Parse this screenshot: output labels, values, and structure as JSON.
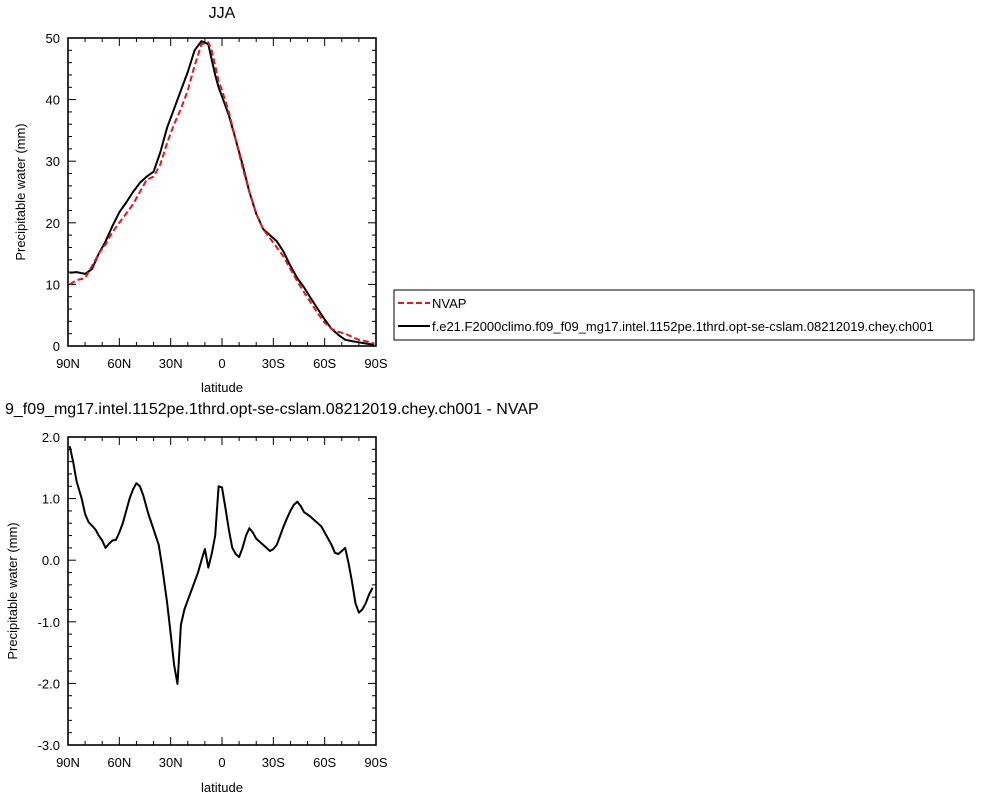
{
  "chart_data": [
    {
      "type": "line",
      "title": "JJA",
      "xlabel": "latitude",
      "ylabel": "Precipitable water (mm)",
      "xlim": [
        90,
        -90
      ],
      "ylim": [
        0,
        50
      ],
      "xticks": [
        {
          "value": 90,
          "label": "90N"
        },
        {
          "value": 60,
          "label": "60N"
        },
        {
          "value": 30,
          "label": "30N"
        },
        {
          "value": 0,
          "label": "0"
        },
        {
          "value": -30,
          "label": "30S"
        },
        {
          "value": -60,
          "label": "60S"
        },
        {
          "value": -90,
          "label": "90S"
        }
      ],
      "yticks": [
        {
          "value": 0,
          "label": "0"
        },
        {
          "value": 10,
          "label": "10"
        },
        {
          "value": 20,
          "label": "20"
        },
        {
          "value": 30,
          "label": "30"
        },
        {
          "value": 40,
          "label": "40"
        },
        {
          "value": 50,
          "label": "50"
        }
      ],
      "legend_position": "right",
      "series": [
        {
          "name": "NVAP",
          "color": "#e0191c",
          "dash": "dashed",
          "x": [
            89,
            85,
            80,
            76,
            72,
            68,
            64,
            60,
            56,
            52,
            48,
            44,
            40,
            36,
            32,
            28,
            24,
            20,
            16,
            12,
            8,
            6,
            4,
            2,
            0,
            -4,
            -8,
            -12,
            -16,
            -20,
            -24,
            -28,
            -32,
            -36,
            -40,
            -44,
            -48,
            -52,
            -56,
            -60,
            -64,
            -68,
            -72,
            -76,
            -80,
            -84,
            -89
          ],
          "y": [
            10.0,
            10.7,
            11.0,
            13.0,
            15.0,
            16.5,
            18.5,
            20.0,
            21.5,
            23.0,
            25.0,
            27.0,
            27.5,
            29.5,
            33.0,
            36.0,
            38.5,
            41.5,
            45.5,
            49.0,
            49.3,
            48.0,
            45.5,
            43.0,
            41.5,
            38.0,
            33.5,
            29.0,
            25.0,
            21.5,
            19.0,
            17.5,
            16.0,
            14.5,
            12.5,
            10.5,
            8.7,
            7.0,
            5.3,
            3.8,
            2.8,
            2.3,
            2.0,
            1.5,
            1.0,
            0.8,
            0.4
          ]
        },
        {
          "name": "f.e21.F2000climo.f09_f09_mg17.intel.1152pe.1thrd.opt-se-cslam.08212019.chey.ch001",
          "color": "#000000",
          "dash": "solid",
          "x": [
            89,
            85,
            80,
            76,
            72,
            68,
            64,
            60,
            56,
            52,
            48,
            44,
            40,
            36,
            32,
            28,
            24,
            20,
            16,
            12,
            8,
            6,
            4,
            2,
            0,
            -4,
            -8,
            -12,
            -16,
            -20,
            -24,
            -28,
            -32,
            -36,
            -40,
            -44,
            -48,
            -52,
            -56,
            -60,
            -64,
            -68,
            -72,
            -76,
            -80,
            -84,
            -89
          ],
          "y": [
            11.9,
            12.0,
            11.7,
            12.5,
            15.0,
            17.0,
            19.5,
            21.7,
            23.3,
            25.0,
            26.5,
            27.5,
            28.3,
            31.5,
            35.5,
            38.5,
            41.5,
            44.5,
            48.0,
            49.5,
            49.0,
            46.5,
            44.0,
            42.0,
            40.5,
            37.5,
            33.5,
            29.5,
            25.0,
            21.5,
            19.0,
            18.0,
            17.0,
            15.3,
            13.0,
            11.0,
            9.5,
            7.7,
            6.0,
            4.3,
            2.8,
            1.8,
            1.0,
            0.8,
            0.6,
            0.4,
            0.2
          ]
        }
      ]
    },
    {
      "type": "line",
      "title": "9_f09_mg17.intel.1152pe.1thrd.opt-se-cslam.08212019.chey.ch001 - NVAP",
      "xlabel": "latitude",
      "ylabel": "Precipitable water (mm)",
      "xlim": [
        90,
        -90
      ],
      "ylim": [
        -3.0,
        2.0
      ],
      "xticks": [
        {
          "value": 90,
          "label": "90N"
        },
        {
          "value": 60,
          "label": "60N"
        },
        {
          "value": 30,
          "label": "30N"
        },
        {
          "value": 0,
          "label": "0"
        },
        {
          "value": -30,
          "label": "30S"
        },
        {
          "value": -60,
          "label": "60S"
        },
        {
          "value": -90,
          "label": "90S"
        }
      ],
      "yticks": [
        {
          "value": 2.0,
          "label": "2.0"
        },
        {
          "value": 1.0,
          "label": "1.0"
        },
        {
          "value": 0.0,
          "label": "0.0"
        },
        {
          "value": -1.0,
          "label": "-1.0"
        },
        {
          "value": -2.0,
          "label": "-2.0"
        },
        {
          "value": -3.0,
          "label": "-3.0"
        }
      ],
      "series": [
        {
          "color": "#000000",
          "dash": "solid",
          "x": [
            89,
            87,
            85,
            82,
            80,
            78,
            74,
            72,
            70,
            68,
            66,
            64,
            62,
            60,
            58,
            56,
            54,
            52,
            50,
            48,
            46,
            43,
            40,
            37,
            35,
            32,
            30,
            28,
            26,
            24,
            22,
            20,
            18,
            16,
            14,
            12,
            10,
            8,
            6,
            4,
            2,
            0,
            -2,
            -4,
            -6,
            -8,
            -10,
            -12,
            -14,
            -16,
            -18,
            -20,
            -22,
            -24,
            -26,
            -28,
            -30,
            -32,
            -34,
            -36,
            -38,
            -40,
            -42,
            -44,
            -46,
            -48,
            -50,
            -52,
            -54,
            -56,
            -58,
            -60,
            -62,
            -64,
            -66,
            -68,
            -70,
            -72,
            -74,
            -76,
            -78,
            -80,
            -82,
            -84,
            -86,
            -88
          ],
          "y": [
            1.85,
            1.6,
            1.28,
            1.0,
            0.75,
            0.62,
            0.5,
            0.4,
            0.32,
            0.2,
            0.27,
            0.32,
            0.33,
            0.45,
            0.6,
            0.8,
            1.0,
            1.15,
            1.25,
            1.2,
            1.05,
            0.75,
            0.5,
            0.25,
            -0.1,
            -0.7,
            -1.2,
            -1.7,
            -2.01,
            -1.05,
            -0.8,
            -0.65,
            -0.5,
            -0.35,
            -0.2,
            0.0,
            0.18,
            -0.12,
            0.1,
            0.4,
            1.2,
            1.18,
            0.85,
            0.5,
            0.2,
            0.1,
            0.05,
            0.2,
            0.4,
            0.52,
            0.45,
            0.35,
            0.3,
            0.25,
            0.2,
            0.15,
            0.18,
            0.25,
            0.4,
            0.55,
            0.68,
            0.8,
            0.9,
            0.95,
            0.88,
            0.78,
            0.74,
            0.7,
            0.65,
            0.6,
            0.55,
            0.45,
            0.35,
            0.25,
            0.12,
            0.1,
            0.15,
            0.2,
            -0.05,
            -0.35,
            -0.7,
            -0.85,
            -0.8,
            -0.7,
            -0.55,
            -0.45
          ]
        }
      ]
    }
  ]
}
